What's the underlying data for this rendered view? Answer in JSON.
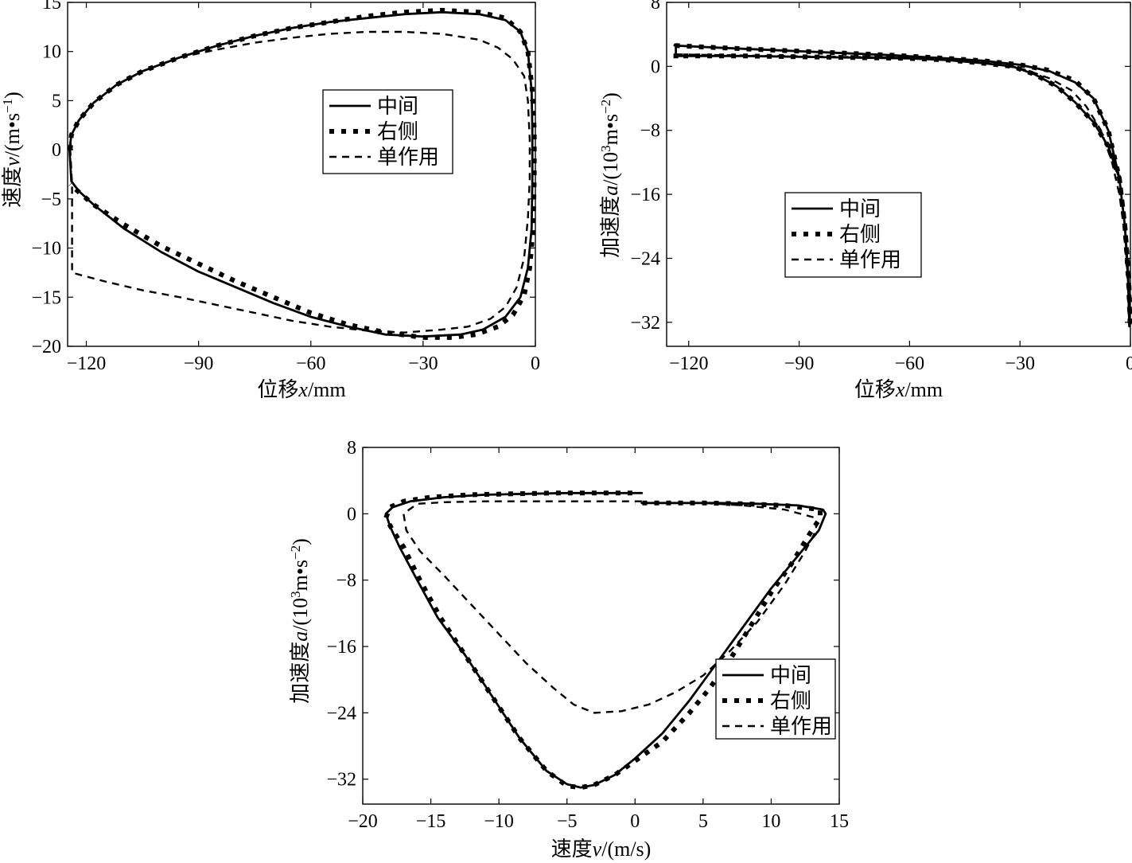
{
  "chart_data": [
    {
      "id": "top-left",
      "type": "line",
      "xlabel": {
        "cn": "位移",
        "var": "x",
        "unit": "/mm"
      },
      "ylabel": {
        "cn": "速度",
        "var": "v",
        "unit": "/(m•s",
        "sup": "−1",
        "close": ")"
      },
      "xlim": [
        -125,
        0
      ],
      "ylim": [
        -20,
        15
      ],
      "xticks": [
        -120,
        -90,
        -60,
        -30,
        0
      ],
      "yticks": [
        15,
        10,
        5,
        0,
        -5,
        -10,
        -15,
        -20
      ],
      "xtick_labels": [
        "−120",
        "−90",
        "−60",
        "−30",
        "0"
      ],
      "ytick_labels": [
        "15",
        "10",
        "5",
        "0",
        "−5",
        "−10",
        "−15",
        "−20"
      ],
      "legend": {
        "position": "center-right",
        "entries": [
          "中间",
          "右侧",
          "单作用"
        ]
      },
      "series": [
        {
          "name": "中间",
          "style": "solid",
          "x": [
            -124.5,
            -124,
            -122,
            -118,
            -112,
            -105,
            -95,
            -85,
            -75,
            -65,
            -55,
            -45,
            -35,
            -25,
            -15,
            -8,
            -4,
            -2,
            -1,
            -0.8,
            -0.8,
            -1,
            -2,
            -4,
            -8,
            -14,
            -20,
            -30,
            -40,
            -50,
            -60,
            -70,
            -80,
            -90,
            -100,
            -110,
            -118,
            -122,
            -124,
            -124.5
          ],
          "y": [
            0,
            1.5,
            3,
            4.8,
            6.6,
            8,
            9.4,
            10.6,
            11.6,
            12.4,
            13,
            13.4,
            13.8,
            14,
            13.8,
            13.2,
            12,
            10,
            6,
            2,
            -3,
            -8,
            -12,
            -15,
            -17,
            -18.3,
            -18.8,
            -19,
            -18.8,
            -18,
            -17,
            -15.6,
            -14,
            -12.4,
            -10.4,
            -8,
            -5.6,
            -4.2,
            -3.2,
            0
          ]
        },
        {
          "name": "右侧",
          "style": "dotted",
          "x": [
            -124.3,
            -124,
            -122,
            -118,
            -112,
            -105,
            -95,
            -85,
            -75,
            -65,
            -55,
            -45,
            -35,
            -25,
            -15,
            -8,
            -4,
            -2,
            -0.8,
            -0.3,
            -0.3,
            -0.6,
            -1.5,
            -3,
            -6,
            -10,
            -16,
            -22,
            -30,
            -40,
            -50,
            -60,
            -70,
            -80,
            -90,
            -100,
            -110,
            -118,
            -122,
            -124.3
          ],
          "y": [
            0,
            1.5,
            3,
            4.8,
            6.6,
            8,
            9.4,
            10.6,
            11.6,
            12.4,
            13,
            13.6,
            14,
            14.2,
            14,
            13.4,
            12,
            10,
            6,
            2,
            -3,
            -8,
            -12,
            -14.8,
            -16.8,
            -18,
            -18.8,
            -19.1,
            -19.1,
            -18.6,
            -17.8,
            -16.6,
            -15,
            -13.4,
            -11.6,
            -9.8,
            -7.6,
            -5.6,
            -4.3,
            -3.5
          ]
        },
        {
          "name": "单作用",
          "style": "dashed",
          "x": [
            -124.3,
            -124,
            -122,
            -118,
            -112,
            -105,
            -95,
            -85,
            -75,
            -65,
            -55,
            -45,
            -35,
            -25,
            -15,
            -10,
            -6,
            -3,
            -2,
            -1.5,
            -1.5,
            -2,
            -3,
            -5,
            -8,
            -12,
            -18,
            -25,
            -35,
            -45,
            -55,
            -65,
            -75,
            -85,
            -95,
            -105,
            -115,
            -121,
            -123.8,
            -123.8,
            -124.3
          ],
          "y": [
            0,
            1.5,
            3,
            4.8,
            6.6,
            8,
            9.4,
            10.2,
            10.9,
            11.4,
            11.8,
            12,
            12,
            11.8,
            11.2,
            10.4,
            9.2,
            7.5,
            5,
            1,
            -3,
            -7,
            -11,
            -14,
            -16,
            -17.2,
            -18,
            -18.3,
            -18.6,
            -18.4,
            -18,
            -17.4,
            -16.6,
            -15.8,
            -15,
            -14.3,
            -13.4,
            -12.8,
            -12.5,
            -3.5,
            0
          ]
        }
      ]
    },
    {
      "id": "top-right",
      "type": "line",
      "xlabel": {
        "cn": "位移",
        "var": "x",
        "unit": "/mm"
      },
      "ylabel": {
        "cn": "加速度",
        "var": "a",
        "unit": "/(10",
        "sup1": "3",
        "unit2": "m•s",
        "sup": "−2",
        "close": ")"
      },
      "xlim": [
        -126,
        0
      ],
      "ylim": [
        -35,
        8
      ],
      "xticks": [
        -120,
        -90,
        -60,
        -30,
        0
      ],
      "yticks": [
        8,
        0,
        -8,
        -16,
        -24,
        -32
      ],
      "xtick_labels": [
        "−120",
        "−90",
        "−60",
        "−30",
        "0"
      ],
      "ytick_labels": [
        "8",
        "0",
        "−8",
        "−16",
        "−24",
        "−32"
      ],
      "legend": {
        "position": "center-left",
        "entries": [
          "中间",
          "右侧",
          "单作用"
        ]
      },
      "series": [
        {
          "name": "中间",
          "style": "solid",
          "x": [
            -123.5,
            -123.5,
            -110,
            -95,
            -80,
            -65,
            -50,
            -40,
            -30,
            -22,
            -15,
            -10,
            -6,
            -3,
            -1.5,
            -0.6,
            -0.3,
            -0.3,
            -0.6,
            -1.5,
            -3,
            -6,
            -10,
            -15,
            -20,
            -26,
            -32,
            -40,
            -50,
            -60,
            -75,
            -90,
            -105,
            -118,
            -123.5
          ],
          "y": [
            1.5,
            2.6,
            2.3,
            2,
            1.7,
            1.4,
            1,
            0.7,
            0.2,
            -0.6,
            -2,
            -4,
            -8,
            -14,
            -20,
            -26,
            -31,
            -32.5,
            -27,
            -20,
            -14,
            -10,
            -7,
            -4.5,
            -2.5,
            -1,
            0,
            0.4,
            0.8,
            1,
            1.1,
            1.2,
            1.3,
            1.3,
            1.3
          ]
        },
        {
          "name": "右侧",
          "style": "dotted",
          "x": [
            -123.5,
            -123.5,
            -110,
            -95,
            -80,
            -65,
            -50,
            -40,
            -30,
            -22,
            -15,
            -10,
            -6,
            -3,
            -1.5,
            -0.5,
            -0.1,
            -0.1,
            -0.5,
            -1.5,
            -3,
            -6,
            -10,
            -15,
            -20,
            -26,
            -32,
            -40,
            -50,
            -60,
            -75,
            -90,
            -105,
            -118,
            -123.5
          ],
          "y": [
            1,
            2.6,
            2.3,
            2,
            1.7,
            1.4,
            1,
            0.7,
            0.2,
            -0.5,
            -1.8,
            -4,
            -8,
            -14,
            -20,
            -26,
            -31,
            -32,
            -27,
            -20,
            -14,
            -10,
            -7,
            -4.5,
            -2.5,
            -1,
            0,
            0.4,
            0.8,
            1,
            1.1,
            1.2,
            1.3,
            1.3,
            1.3
          ]
        },
        {
          "name": "单作用",
          "style": "dashed",
          "x": [
            -123.5,
            -110,
            -95,
            -80,
            -65,
            -55,
            -48,
            -42,
            -35,
            -28,
            -22,
            -16,
            -12,
            -8,
            -5,
            -3,
            -1.5,
            -0.6,
            -0.3
          ],
          "y": [
            1.5,
            1.4,
            1.3,
            1.2,
            1.1,
            1,
            0.8,
            0.5,
            0.2,
            -0.5,
            -1.5,
            -3,
            -5,
            -8,
            -12,
            -16,
            -21,
            -27,
            -32
          ]
        }
      ]
    },
    {
      "id": "bottom",
      "type": "line",
      "xlabel": {
        "cn": "速度",
        "var": "v",
        "unit": "/(m/s)"
      },
      "ylabel": {
        "cn": "加速度",
        "var": "a",
        "unit": "/(10",
        "sup1": "3",
        "unit2": "m•s",
        "sup": "−2",
        "close": ")"
      },
      "xlim": [
        -20,
        15
      ],
      "ylim": [
        -35,
        8
      ],
      "xticks": [
        -20,
        -15,
        -10,
        -5,
        0,
        5,
        10,
        15
      ],
      "yticks": [
        8,
        0,
        -8,
        -16,
        -24,
        -32
      ],
      "xtick_labels": [
        "−20",
        "−15",
        "−10",
        "−5",
        "0",
        "5",
        "10",
        "15"
      ],
      "ytick_labels": [
        "8",
        "0",
        "−8",
        "−16",
        "−24",
        "−32"
      ],
      "legend": {
        "position": "lower-right",
        "entries": [
          "中间",
          "右侧",
          "单作用"
        ]
      },
      "series": [
        {
          "name": "中间",
          "style": "solid",
          "x": [
            0.5,
            -2,
            -5,
            -8,
            -11,
            -14,
            -16.5,
            -17.8,
            -18.3,
            -18,
            -17.3,
            -16,
            -14.5,
            -12.5,
            -10.5,
            -8.5,
            -6.5,
            -5,
            -4,
            -3,
            -1.5,
            0,
            2,
            4,
            6,
            8,
            10,
            12,
            13.5,
            14,
            13.8,
            12,
            9,
            6,
            3,
            0.5
          ],
          "y": [
            2.5,
            2.5,
            2.5,
            2.4,
            2.3,
            2,
            1.5,
            0.8,
            0,
            -1.5,
            -4,
            -8,
            -12.5,
            -17,
            -22,
            -27,
            -31,
            -32.6,
            -33,
            -32.7,
            -31.5,
            -29.5,
            -26.5,
            -22.5,
            -18,
            -13.5,
            -9,
            -5,
            -2,
            0,
            0.5,
            1,
            1.2,
            1.3,
            1.3,
            1.3
          ]
        },
        {
          "name": "右侧",
          "style": "dotted",
          "x": [
            -0.2,
            -3,
            -6,
            -9,
            -12,
            -15,
            -17,
            -18,
            -18.3,
            -17.8,
            -17,
            -15.8,
            -14.3,
            -12.5,
            -10.5,
            -8.5,
            -6.5,
            -5,
            -4,
            -3,
            -1.5,
            0,
            2,
            4,
            5.5,
            7,
            8.5,
            10,
            11.5,
            12.8,
            13.6,
            13.6,
            11,
            8,
            5,
            2,
            0
          ],
          "y": [
            2.5,
            2.5,
            2.5,
            2.4,
            2.3,
            2,
            1.5,
            0.8,
            -0.5,
            -2,
            -4,
            -8,
            -12.5,
            -17,
            -22,
            -27,
            -31,
            -32.8,
            -33,
            -32.7,
            -31.5,
            -29.8,
            -27.5,
            -24,
            -21,
            -17.5,
            -13.5,
            -9.5,
            -6,
            -2.5,
            -0.5,
            0.5,
            1,
            1.2,
            1.3,
            1.3,
            1.3
          ]
        },
        {
          "name": "单作用",
          "style": "dashed",
          "x": [
            0.5,
            -3,
            -7,
            -11,
            -14,
            -16,
            -17,
            -16.8,
            -15.8,
            -14,
            -12,
            -10,
            -8,
            -6,
            -4.5,
            -3,
            -1,
            1,
            3,
            5,
            7,
            9,
            11,
            12.5,
            13.3,
            13.3,
            11,
            8,
            5,
            2,
            0.5
          ],
          "y": [
            1.5,
            1.5,
            1.5,
            1.5,
            1.4,
            1.2,
            0,
            -2,
            -4.5,
            -7.5,
            -11,
            -14.5,
            -18,
            -21,
            -23,
            -24,
            -23.8,
            -23,
            -21.5,
            -19.5,
            -16.5,
            -13,
            -8.5,
            -4.5,
            -2,
            -0.5,
            0.5,
            1,
            1.3,
            1.3,
            1.3
          ]
        }
      ]
    }
  ]
}
